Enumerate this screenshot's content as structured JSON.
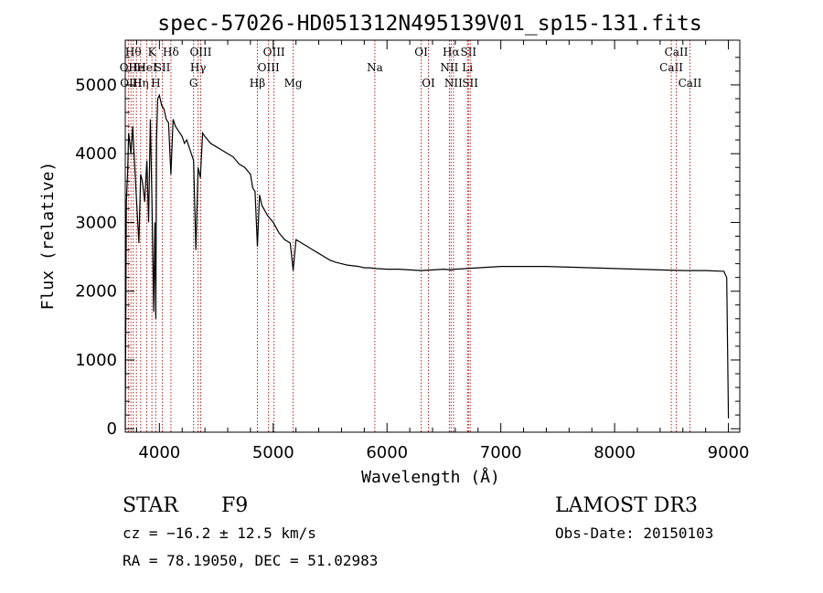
{
  "chart_data": {
    "type": "line",
    "title": "spec-57026-HD051312N495139V01_sp15-131.fits",
    "xlabel": "Wavelength (Å)",
    "ylabel": "Flux (relative)",
    "xlim": [
      3700,
      9100
    ],
    "ylim": [
      -50,
      5650
    ],
    "xticks": [
      4000,
      5000,
      6000,
      7000,
      8000,
      9000
    ],
    "yticks": [
      0,
      1000,
      2000,
      3000,
      4000,
      5000
    ],
    "grid": false,
    "series": [
      {
        "x": [
          3700,
          3710,
          3720,
          3730,
          3750,
          3765,
          3780,
          3800,
          3820,
          3835,
          3850,
          3870,
          3890,
          3905,
          3920,
          3935,
          3950,
          3960,
          3968,
          3975,
          3985,
          4000,
          4020,
          4040,
          4060,
          4080,
          4101,
          4120,
          4140,
          4160,
          4180,
          4200,
          4220,
          4240,
          4260,
          4280,
          4300,
          4320,
          4340,
          4360,
          4380,
          4400,
          4450,
          4500,
          4550,
          4600,
          4650,
          4700,
          4750,
          4800,
          4820,
          4840,
          4861,
          4880,
          4900,
          4950,
          5000,
          5050,
          5100,
          5150,
          5175,
          5200,
          5250,
          5300,
          5350,
          5400,
          5450,
          5500,
          5550,
          5600,
          5650,
          5700,
          5750,
          5800,
          5850,
          5900,
          6000,
          6100,
          6200,
          6300,
          6400,
          6500,
          6563,
          6600,
          6700,
          6800,
          6900,
          7000,
          7200,
          7400,
          7600,
          7800,
          8000,
          8200,
          8400,
          8600,
          8800,
          8960,
          8985,
          9000
        ],
        "y": [
          0,
          3300,
          3700,
          4300,
          4000,
          4400,
          3900,
          3300,
          2700,
          3700,
          3600,
          3300,
          3900,
          3000,
          4500,
          3300,
          1700,
          3000,
          1600,
          4200,
          4800,
          4850,
          4700,
          4650,
          4500,
          4450,
          3700,
          4500,
          4400,
          4350,
          4300,
          4250,
          4150,
          4200,
          4100,
          4000,
          3900,
          2600,
          3800,
          3650,
          4300,
          4250,
          4150,
          4100,
          4050,
          4000,
          3950,
          3850,
          3800,
          3700,
          3500,
          3450,
          2650,
          3400,
          3250,
          3100,
          3000,
          2850,
          2750,
          2700,
          2300,
          2750,
          2700,
          2650,
          2600,
          2550,
          2500,
          2450,
          2420,
          2400,
          2380,
          2370,
          2360,
          2340,
          2340,
          2330,
          2320,
          2320,
          2310,
          2300,
          2310,
          2320,
          2310,
          2320,
          2330,
          2340,
          2350,
          2360,
          2360,
          2360,
          2350,
          2340,
          2330,
          2320,
          2310,
          2300,
          2300,
          2290,
          2200,
          150
        ]
      }
    ],
    "line_marks": [
      {
        "w": 3727,
        "label": "OII",
        "row": 1
      },
      {
        "w": 3750,
        "label": "OIII",
        "row": 2
      },
      {
        "w": 3770,
        "label": "Hθ",
        "row": 0
      },
      {
        "w": 3798,
        "label": "He",
        "row": 1
      },
      {
        "w": 3835,
        "label": "Hη",
        "row": 2
      },
      {
        "w": 3889,
        "label": "HeI",
        "row": 1
      },
      {
        "w": 3934,
        "label": "K",
        "row": 0
      },
      {
        "w": 3968,
        "label": "H",
        "row": 2
      },
      {
        "w": 4026,
        "label": "SII",
        "row": 1
      },
      {
        "w": 4101,
        "label": "Hδ",
        "row": 0
      },
      {
        "w": 4300,
        "label": "G",
        "row": 2
      },
      {
        "w": 4340,
        "label": "Hγ",
        "row": 1
      },
      {
        "w": 4363,
        "label": "OIII",
        "row": 0
      },
      {
        "w": 4861,
        "label": "Hβ",
        "row": 2
      },
      {
        "w": 4959,
        "label": "OIII",
        "row": 1
      },
      {
        "w": 5007,
        "label": "OIII",
        "row": 0
      },
      {
        "w": 5175,
        "label": "Mg",
        "row": 2
      },
      {
        "w": 5893,
        "label": "Na",
        "row": 1
      },
      {
        "w": 6300,
        "label": "OI",
        "row": 0
      },
      {
        "w": 6364,
        "label": "OI",
        "row": 2
      },
      {
        "w": 6548,
        "label": "NII",
        "row": 1
      },
      {
        "w": 6563,
        "label": "Hα",
        "row": 0
      },
      {
        "w": 6584,
        "label": "NII",
        "row": 2
      },
      {
        "w": 6707,
        "label": "Li",
        "row": 1
      },
      {
        "w": 6716,
        "label": "SII",
        "row": 0
      },
      {
        "w": 6731,
        "label": "SII",
        "row": 2
      },
      {
        "w": 8498,
        "label": "CaII",
        "row": 1
      },
      {
        "w": 8542,
        "label": "CaII",
        "row": 0
      },
      {
        "w": 8662,
        "label": "CaII",
        "row": 2
      }
    ],
    "line_color": "#b22222",
    "data_color": "#000000"
  },
  "info": {
    "object_class": "STAR",
    "subclass": "F9",
    "survey": "LAMOST DR3",
    "cz": "cz = −16.2 ± 12.5 km/s",
    "obs_date": "Obs-Date: 20150103",
    "radec": "RA =  78.19050, DEC =  51.02983"
  }
}
